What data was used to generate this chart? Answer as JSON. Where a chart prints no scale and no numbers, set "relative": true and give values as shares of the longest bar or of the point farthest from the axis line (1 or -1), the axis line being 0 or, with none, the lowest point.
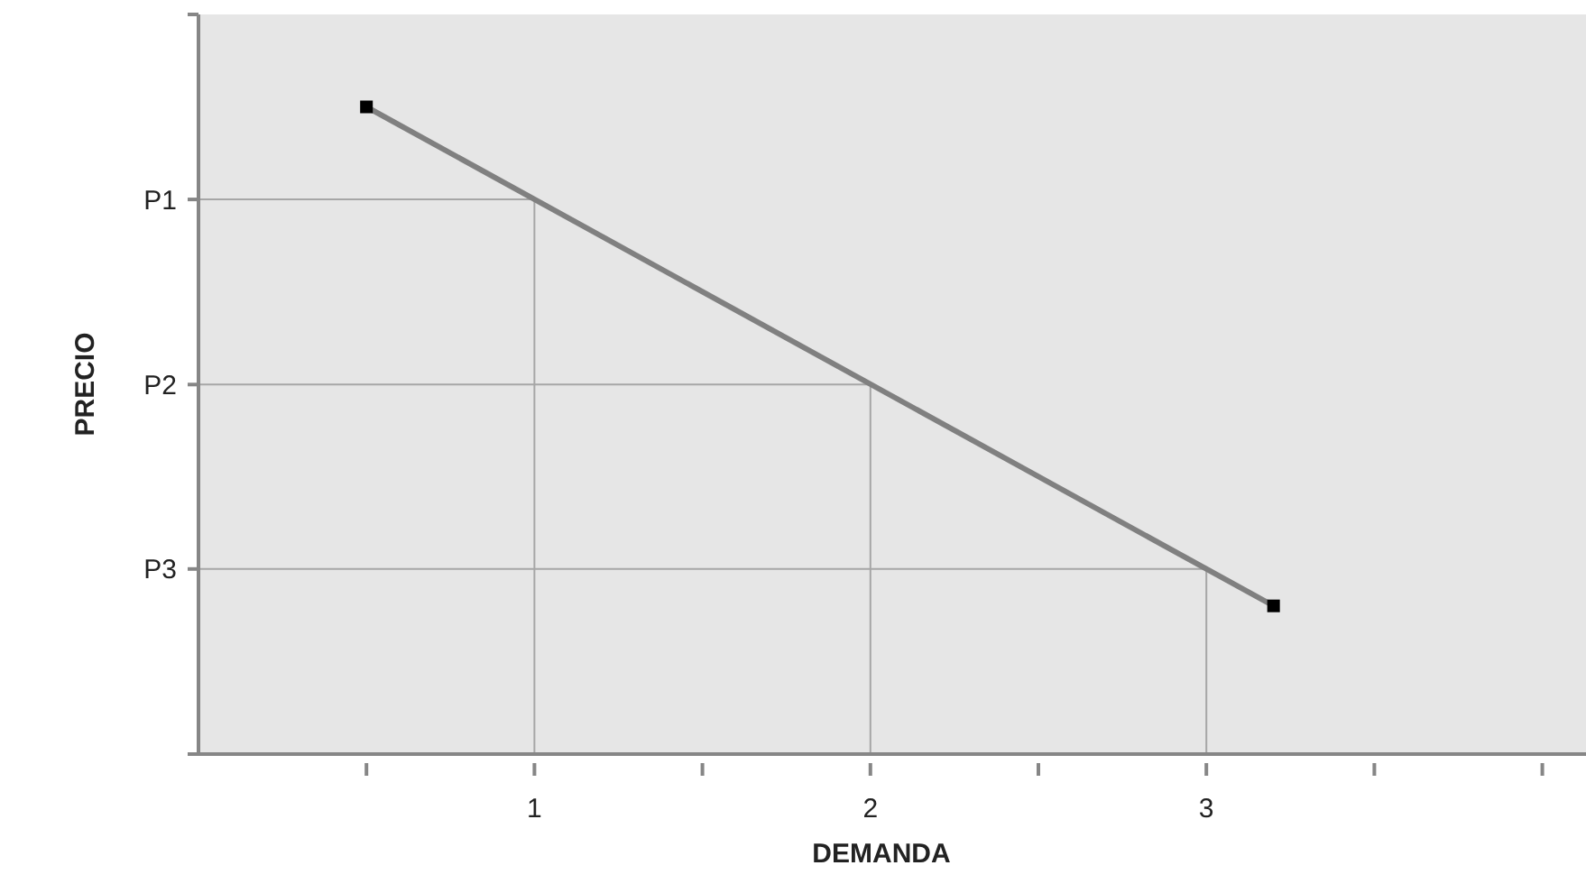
{
  "chart_data": {
    "type": "line",
    "xlabel": "DEMANDA",
    "ylabel": "PRECIO",
    "relative": true,
    "xlim": [
      0,
      4.13
    ],
    "xticks": [
      {
        "value": 0.5,
        "label": null
      },
      1,
      {
        "value": 1.5,
        "label": null
      },
      2,
      {
        "value": 2.5,
        "label": null
      },
      3,
      {
        "value": 3.5,
        "label": null
      },
      {
        "value": 4,
        "label": null
      }
    ],
    "annotations": [
      "P1",
      "P2",
      "P3"
    ],
    "series": [
      {
        "color": "#808080",
        "x": [
          0.5,
          3.2
        ],
        "values": [
          1,
          0.229
        ],
        "marker": "square"
      },
      {
        "color": "#a6a6a6",
        "x": [
          0,
          1,
          1
        ],
        "values": [
          0.857,
          0.857,
          0
        ],
        "marker": "none"
      },
      {
        "color": "#a6a6a6",
        "x": [
          0,
          2,
          2
        ],
        "values": [
          0.571,
          0.571,
          0
        ],
        "marker": "none"
      },
      {
        "color": "#a6a6a6",
        "x": [
          0,
          3,
          3
        ],
        "values": [
          0.286,
          0.286,
          0
        ],
        "marker": "none"
      }
    ]
  }
}
